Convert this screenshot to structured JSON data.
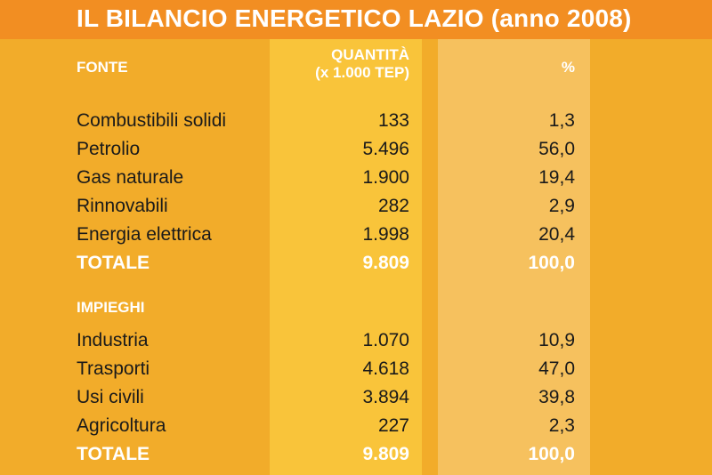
{
  "title": "IL BILANCIO ENERGETICO LAZIO (anno 2008)",
  "headers": {
    "fonte": "FONTE",
    "quantita_line1": "QUANTITÀ",
    "quantita_line2": "(x 1.000 TEP)",
    "percent": "%",
    "impieghi": "IMPIEGHI"
  },
  "fonti": [
    {
      "label": "Combustibili solidi",
      "qty": "133",
      "pct": "1,3"
    },
    {
      "label": "Petrolio",
      "qty": "5.496",
      "pct": "56,0"
    },
    {
      "label": "Gas naturale",
      "qty": "1.900",
      "pct": "19,4"
    },
    {
      "label": "Rinnovabili",
      "qty": "282",
      "pct": "2,9"
    },
    {
      "label": "Energia elettrica",
      "qty": "1.998",
      "pct": "20,4"
    }
  ],
  "fonti_total": {
    "label": "TOTALE",
    "qty": "9.809",
    "pct": "100,0"
  },
  "impieghi": [
    {
      "label": "Industria",
      "qty": "1.070",
      "pct": "10,9"
    },
    {
      "label": "Trasporti",
      "qty": "4.618",
      "pct": "47,0"
    },
    {
      "label": "Usi civili",
      "qty": "3.894",
      "pct": "39,8"
    },
    {
      "label": "Agricoltura",
      "qty": "227",
      "pct": "2,3"
    }
  ],
  "impieghi_total": {
    "label": "TOTALE",
    "qty": "9.809",
    "pct": "100,0"
  },
  "colors": {
    "background": "#F2AC2A",
    "title_bar": "#F28E22",
    "quantity_column": "#F9C43A",
    "percent_column": "#F6C15E",
    "total_text": "#FFFFFF"
  }
}
